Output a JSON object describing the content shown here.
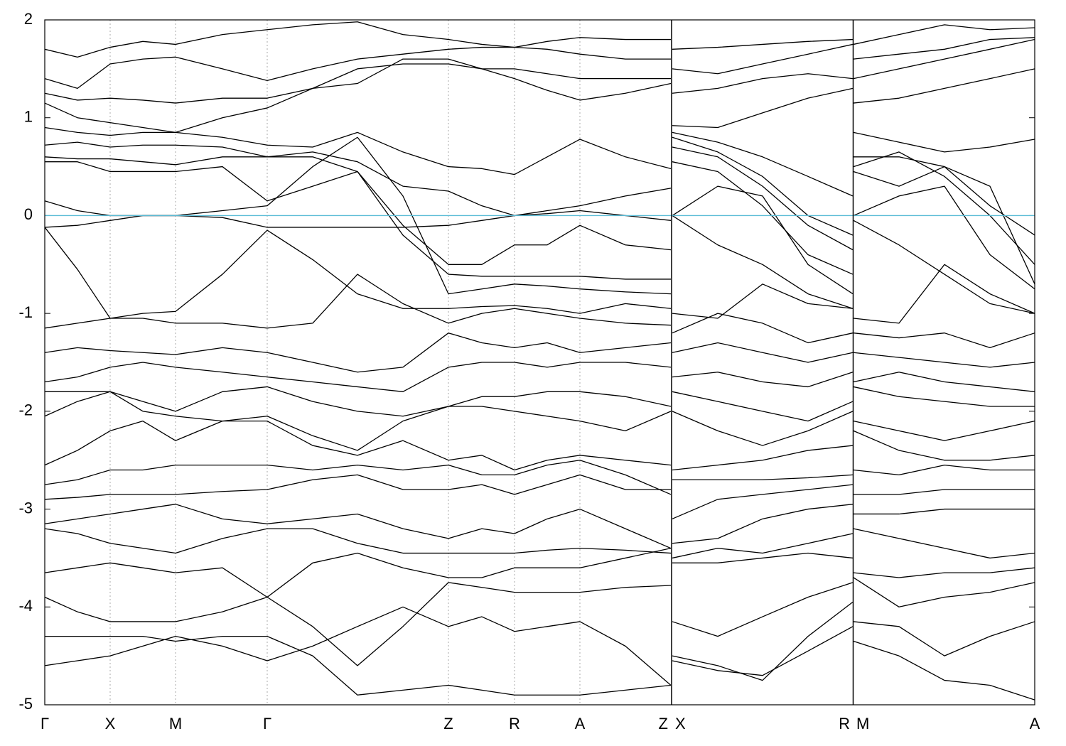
{
  "chart_data": {
    "type": "line",
    "x": [
      0,
      0.46,
      0.92,
      1.38,
      1.84,
      2.5,
      3.13,
      3.77,
      4.4,
      5.04,
      5.68,
      6.15,
      6.61,
      7.07,
      7.53,
      8.17,
      8.81,
      8.82,
      8.83,
      9.47,
      10.1,
      10.74,
      11.37,
      11.375,
      11.38,
      12.02,
      12.66,
      13.3,
      13.93
    ],
    "xlim": [
      0,
      13.93
    ],
    "xticks": [
      {
        "value": 0,
        "label": "Γ"
      },
      {
        "value": 0.92,
        "label": "X"
      },
      {
        "value": 1.84,
        "label": "M"
      },
      {
        "value": 3.13,
        "label": "Γ"
      },
      {
        "value": 5.68,
        "label": "Z"
      },
      {
        "value": 6.61,
        "label": "R"
      },
      {
        "value": 7.53,
        "label": "A"
      },
      {
        "value": 8.81,
        "label": "Z"
      },
      {
        "value": 8.83,
        "label": "X"
      },
      {
        "value": 11.37,
        "label": "R"
      },
      {
        "value": 11.38,
        "label": "M"
      },
      {
        "value": 13.93,
        "label": "A"
      }
    ],
    "ylim": [
      -5,
      2
    ],
    "yticks": [
      -5,
      -4,
      -3,
      -2,
      -1,
      0,
      1,
      2
    ],
    "xgrid": true,
    "breaks": [
      8.82,
      11.375
    ],
    "hline": {
      "value": 0,
      "color": "#5bbcd6"
    },
    "series": [
      {
        "color": "#000000",
        "values": [
          1.7,
          1.62,
          1.72,
          1.78,
          1.75,
          1.85,
          1.9,
          1.95,
          1.98,
          1.85,
          1.8,
          1.75,
          1.72,
          1.78,
          1.82,
          1.8,
          1.8,
          null,
          1.7,
          1.72,
          1.75,
          1.78,
          1.8,
          null,
          1.75,
          1.85,
          1.95,
          1.9,
          1.92
        ]
      },
      {
        "color": "#000000",
        "values": [
          1.4,
          1.3,
          1.55,
          1.6,
          1.62,
          1.5,
          1.38,
          1.5,
          1.6,
          1.65,
          1.7,
          1.72,
          1.72,
          1.7,
          1.65,
          1.6,
          1.6,
          null,
          1.5,
          1.45,
          1.55,
          1.65,
          1.75,
          null,
          1.6,
          1.65,
          1.7,
          1.8,
          1.82
        ]
      },
      {
        "color": "#000000",
        "values": [
          1.25,
          1.18,
          1.2,
          1.18,
          1.15,
          1.2,
          1.2,
          1.3,
          1.5,
          1.55,
          1.55,
          1.5,
          1.4,
          1.28,
          1.18,
          1.25,
          1.35,
          null,
          1.25,
          1.3,
          1.4,
          1.45,
          1.4,
          null,
          1.4,
          1.5,
          1.6,
          1.7,
          1.8
        ]
      },
      {
        "color": "#000000",
        "values": [
          1.15,
          1.0,
          0.95,
          0.9,
          0.85,
          1.0,
          1.1,
          1.3,
          1.35,
          1.6,
          1.6,
          1.5,
          1.5,
          1.45,
          1.4,
          1.4,
          1.4,
          null,
          0.92,
          0.9,
          1.05,
          1.2,
          1.3,
          null,
          1.15,
          1.2,
          1.3,
          1.4,
          1.5
        ]
      },
      {
        "color": "#000000",
        "values": [
          0.9,
          0.85,
          0.82,
          0.85,
          0.85,
          0.8,
          0.72,
          0.7,
          0.85,
          0.65,
          0.5,
          0.48,
          0.42,
          0.6,
          0.78,
          0.6,
          0.48,
          null,
          0.85,
          0.75,
          0.6,
          0.4,
          0.2,
          null,
          0.85,
          0.75,
          0.65,
          0.7,
          0.78
        ]
      },
      {
        "color": "#000000",
        "values": [
          0.72,
          0.75,
          0.7,
          0.72,
          0.72,
          0.7,
          0.6,
          0.65,
          0.55,
          0.3,
          0.25,
          0.1,
          0.0,
          0.05,
          0.1,
          0.2,
          0.28,
          null,
          0.8,
          0.65,
          0.4,
          0.0,
          -0.2,
          null,
          0.6,
          0.6,
          0.5,
          0.1,
          -0.2
        ]
      },
      {
        "color": "#000000",
        "values": [
          0.6,
          0.58,
          0.58,
          0.55,
          0.52,
          0.6,
          0.6,
          0.6,
          0.45,
          -0.1,
          -0.5,
          -0.5,
          -0.3,
          -0.3,
          -0.1,
          -0.3,
          -0.35,
          null,
          0.7,
          0.6,
          0.3,
          -0.1,
          -0.35,
          null,
          0.5,
          0.65,
          0.4,
          0.0,
          -0.5
        ]
      },
      {
        "color": "#000000",
        "values": [
          0.55,
          0.55,
          0.45,
          0.45,
          0.45,
          0.5,
          0.15,
          0.3,
          0.45,
          -0.2,
          -0.6,
          -0.62,
          -0.62,
          -0.62,
          -0.62,
          -0.65,
          -0.65,
          null,
          0.55,
          0.45,
          0.1,
          -0.4,
          -0.6,
          null,
          0.45,
          0.3,
          0.5,
          0.3,
          -0.7
        ]
      },
      {
        "color": "#000000",
        "values": [
          0.15,
          0.05,
          0.0,
          0.0,
          0.0,
          0.05,
          0.1,
          0.5,
          0.8,
          0.2,
          -0.8,
          -0.75,
          -0.7,
          -0.72,
          -0.75,
          -0.78,
          -0.8,
          null,
          0.0,
          0.3,
          0.2,
          -0.5,
          -0.8,
          null,
          0.0,
          0.2,
          0.3,
          -0.4,
          -0.75
        ]
      },
      {
        "color": "#000000",
        "values": [
          -0.12,
          -0.1,
          -0.05,
          0.0,
          0.0,
          -0.02,
          -0.12,
          -0.12,
          -0.12,
          -0.12,
          -0.1,
          -0.05,
          0.0,
          0.02,
          0.05,
          0.0,
          -0.05,
          null,
          0.0,
          -0.3,
          -0.5,
          -0.8,
          -0.95,
          null,
          -0.05,
          -0.3,
          -0.6,
          -0.9,
          -1.0
        ]
      },
      {
        "color": "#000000",
        "values": [
          -0.12,
          -0.55,
          -1.05,
          -1.0,
          -0.98,
          -0.6,
          -0.15,
          -0.45,
          -0.8,
          -0.95,
          -0.95,
          -0.93,
          -0.92,
          -0.95,
          -1.0,
          -0.9,
          -0.95,
          null,
          -1.0,
          -1.05,
          -0.7,
          -0.9,
          -0.95,
          null,
          -1.05,
          -1.1,
          -0.5,
          -0.8,
          -1.0
        ]
      },
      {
        "color": "#000000",
        "values": [
          -1.15,
          -1.1,
          -1.05,
          -1.05,
          -1.1,
          -1.1,
          -1.15,
          -1.1,
          -0.6,
          -0.9,
          -1.1,
          -1.0,
          -0.95,
          -1.0,
          -1.05,
          -1.1,
          -1.12,
          null,
          -1.2,
          -1.0,
          -1.1,
          -1.3,
          -1.2,
          null,
          -1.2,
          -1.25,
          -1.2,
          -1.35,
          -1.2
        ]
      },
      {
        "color": "#000000",
        "values": [
          -1.4,
          -1.35,
          -1.38,
          -1.4,
          -1.42,
          -1.35,
          -1.4,
          -1.5,
          -1.6,
          -1.55,
          -1.2,
          -1.3,
          -1.35,
          -1.3,
          -1.4,
          -1.35,
          -1.3,
          null,
          -1.4,
          -1.3,
          -1.4,
          -1.5,
          -1.4,
          null,
          -1.4,
          -1.45,
          -1.5,
          -1.55,
          -1.5
        ]
      },
      {
        "color": "#000000",
        "values": [
          -1.7,
          -1.65,
          -1.55,
          -1.5,
          -1.55,
          -1.6,
          -1.65,
          -1.7,
          -1.75,
          -1.8,
          -1.55,
          -1.5,
          -1.5,
          -1.55,
          -1.5,
          -1.5,
          -1.55,
          null,
          -1.65,
          -1.6,
          -1.7,
          -1.75,
          -1.6,
          null,
          -1.7,
          -1.6,
          -1.7,
          -1.75,
          -1.8
        ]
      },
      {
        "color": "#000000",
        "values": [
          -1.8,
          -1.8,
          -1.8,
          -1.9,
          -2.0,
          -1.8,
          -1.75,
          -1.9,
          -2.0,
          -2.05,
          -1.95,
          -1.85,
          -1.85,
          -1.8,
          -1.8,
          -1.85,
          -1.95,
          null,
          -1.8,
          -1.9,
          -2.0,
          -2.1,
          -1.9,
          null,
          -1.75,
          -1.85,
          -1.9,
          -1.95,
          -1.95
        ]
      },
      {
        "color": "#000000",
        "values": [
          -2.05,
          -1.9,
          -1.8,
          -2.0,
          -2.05,
          -2.1,
          -2.05,
          -2.25,
          -2.4,
          -2.1,
          -1.95,
          -1.95,
          -2.0,
          -2.05,
          -2.1,
          -2.2,
          -2.0,
          null,
          -2.0,
          -2.2,
          -2.35,
          -2.2,
          -2.0,
          null,
          -2.1,
          -2.2,
          -2.3,
          -2.2,
          -2.1
        ]
      },
      {
        "color": "#000000",
        "values": [
          -2.55,
          -2.4,
          -2.2,
          -2.1,
          -2.3,
          -2.1,
          -2.1,
          -2.35,
          -2.45,
          -2.3,
          -2.5,
          -2.45,
          -2.6,
          -2.5,
          -2.45,
          -2.5,
          -2.55,
          null,
          -2.6,
          -2.55,
          -2.5,
          -2.4,
          -2.35,
          null,
          -2.2,
          -2.4,
          -2.5,
          -2.5,
          -2.45
        ]
      },
      {
        "color": "#000000",
        "values": [
          -2.75,
          -2.7,
          -2.6,
          -2.6,
          -2.55,
          -2.55,
          -2.55,
          -2.6,
          -2.55,
          -2.6,
          -2.55,
          -2.65,
          -2.65,
          -2.55,
          -2.5,
          -2.65,
          -2.85,
          null,
          -2.7,
          -2.7,
          -2.7,
          -2.68,
          -2.65,
          null,
          -2.6,
          -2.65,
          -2.55,
          -2.6,
          -2.6
        ]
      },
      {
        "color": "#000000",
        "values": [
          -2.9,
          -2.88,
          -2.85,
          -2.85,
          -2.85,
          -2.82,
          -2.8,
          -2.7,
          -2.65,
          -2.8,
          -2.8,
          -2.75,
          -2.85,
          -2.75,
          -2.65,
          -2.8,
          -2.8,
          null,
          -3.1,
          -2.9,
          -2.85,
          -2.8,
          -2.75,
          null,
          -2.85,
          -2.85,
          -2.8,
          -2.8,
          -2.8
        ]
      },
      {
        "color": "#000000",
        "values": [
          -3.15,
          -3.1,
          -3.05,
          -3.0,
          -2.95,
          -3.1,
          -3.15,
          -3.1,
          -3.05,
          -3.2,
          -3.3,
          -3.2,
          -3.25,
          -3.1,
          -3.0,
          -3.2,
          -3.4,
          null,
          -3.35,
          -3.3,
          -3.1,
          -3.0,
          -2.95,
          null,
          -3.05,
          -3.05,
          -3.0,
          -3.0,
          -3.0
        ]
      },
      {
        "color": "#000000",
        "values": [
          -3.2,
          -3.25,
          -3.35,
          -3.4,
          -3.45,
          -3.3,
          -3.2,
          -3.2,
          -3.35,
          -3.45,
          -3.45,
          -3.45,
          -3.45,
          -3.42,
          -3.4,
          -3.42,
          -3.45,
          null,
          -3.5,
          -3.4,
          -3.45,
          -3.35,
          -3.25,
          null,
          -3.2,
          -3.3,
          -3.4,
          -3.5,
          -3.45
        ]
      },
      {
        "color": "#000000",
        "values": [
          -3.65,
          -3.6,
          -3.55,
          -3.6,
          -3.65,
          -3.6,
          -3.9,
          -3.55,
          -3.45,
          -3.6,
          -3.7,
          -3.7,
          -3.6,
          -3.6,
          -3.6,
          -3.5,
          -3.4,
          null,
          -3.55,
          -3.55,
          -3.5,
          -3.45,
          -3.5,
          null,
          -3.65,
          -3.7,
          -3.65,
          -3.65,
          -3.6
        ]
      },
      {
        "color": "#000000",
        "values": [
          -3.9,
          -4.05,
          -4.15,
          -4.15,
          -4.15,
          -4.05,
          -3.9,
          -4.2,
          -4.6,
          -4.2,
          -3.75,
          -3.8,
          -3.85,
          -3.85,
          -3.85,
          -3.8,
          -3.78,
          null,
          -4.15,
          -4.3,
          -4.1,
          -3.9,
          -3.75,
          null,
          -3.7,
          -4.0,
          -3.9,
          -3.85,
          -3.75
        ]
      },
      {
        "color": "#000000",
        "values": [
          -4.3,
          -4.3,
          -4.3,
          -4.3,
          -4.35,
          -4.3,
          -4.3,
          -4.5,
          -4.9,
          -4.85,
          -4.8,
          -4.85,
          -4.9,
          -4.9,
          -4.9,
          -4.85,
          -4.8,
          null,
          -4.5,
          -4.6,
          -4.75,
          -4.3,
          -3.95,
          null,
          -4.15,
          -4.2,
          -4.5,
          -4.3,
          -4.15
        ]
      },
      {
        "color": "#000000",
        "values": [
          -4.6,
          -4.55,
          -4.5,
          -4.4,
          -4.3,
          -4.4,
          -4.55,
          -4.4,
          -4.2,
          -4.0,
          -4.2,
          -4.1,
          -4.25,
          -4.2,
          -4.15,
          -4.4,
          -4.8,
          null,
          -4.55,
          -4.65,
          -4.7,
          -4.45,
          -4.2,
          null,
          -4.35,
          -4.5,
          -4.75,
          -4.8,
          -4.95
        ]
      }
    ]
  }
}
